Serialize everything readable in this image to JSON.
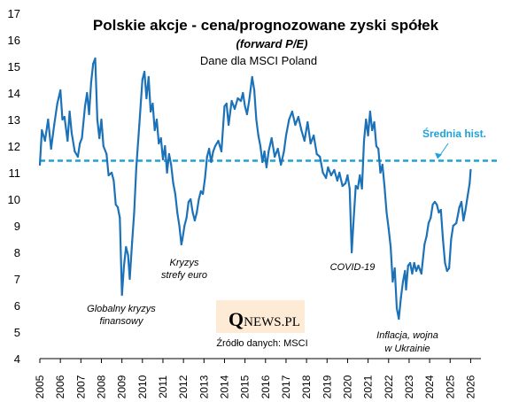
{
  "chart_data": {
    "type": "line",
    "title": "Polskie akcje - cena/prognozowane zyski spółek",
    "subtitle": "(forward P/E)",
    "note": "Dane dla MSCI Poland",
    "xlabel": "",
    "ylabel": "",
    "ylim": [
      4,
      17
    ],
    "xlim": [
      2005,
      2026.5
    ],
    "y_ticks": [
      "4",
      "5",
      "6",
      "7",
      "8",
      "9",
      "10",
      "11",
      "12",
      "13",
      "14",
      "15",
      "16",
      "17"
    ],
    "x_ticks": [
      "2005",
      "2006",
      "2007",
      "2008",
      "2009",
      "2010",
      "2011",
      "2012",
      "2013",
      "2014",
      "2015",
      "2016",
      "2017",
      "2018",
      "2019",
      "2020",
      "2021",
      "2022",
      "2023",
      "2024",
      "2025",
      "2026"
    ],
    "grid": false,
    "line_color": "#1c72b8",
    "series": [
      {
        "name": "",
        "points": [
          [
            2005.0,
            11.3
          ],
          [
            2005.1,
            12.6
          ],
          [
            2005.25,
            12.2
          ],
          [
            2005.4,
            13.0
          ],
          [
            2005.55,
            11.9
          ],
          [
            2005.7,
            12.8
          ],
          [
            2005.85,
            13.6
          ],
          [
            2006.0,
            14.1
          ],
          [
            2006.1,
            13.0
          ],
          [
            2006.2,
            13.1
          ],
          [
            2006.35,
            12.2
          ],
          [
            2006.45,
            13.3
          ],
          [
            2006.55,
            12.5
          ],
          [
            2006.7,
            11.8
          ],
          [
            2006.85,
            11.6
          ],
          [
            2006.95,
            12.1
          ],
          [
            2007.05,
            12.3
          ],
          [
            2007.2,
            13.5
          ],
          [
            2007.3,
            14.0
          ],
          [
            2007.4,
            13.2
          ],
          [
            2007.5,
            14.4
          ],
          [
            2007.6,
            15.1
          ],
          [
            2007.7,
            15.3
          ],
          [
            2007.8,
            13.0
          ],
          [
            2007.9,
            12.3
          ],
          [
            2008.0,
            13.0
          ],
          [
            2008.1,
            12.0
          ],
          [
            2008.25,
            11.7
          ],
          [
            2008.35,
            10.9
          ],
          [
            2008.5,
            11.0
          ],
          [
            2008.6,
            10.7
          ],
          [
            2008.7,
            9.8
          ],
          [
            2008.8,
            9.7
          ],
          [
            2008.9,
            9.3
          ],
          [
            2009.0,
            6.4
          ],
          [
            2009.1,
            7.5
          ],
          [
            2009.2,
            8.2
          ],
          [
            2009.3,
            7.9
          ],
          [
            2009.38,
            7.0
          ],
          [
            2009.5,
            8.4
          ],
          [
            2009.6,
            9.5
          ],
          [
            2009.7,
            11.2
          ],
          [
            2009.85,
            12.8
          ],
          [
            2010.0,
            14.5
          ],
          [
            2010.1,
            14.8
          ],
          [
            2010.2,
            13.8
          ],
          [
            2010.3,
            14.6
          ],
          [
            2010.4,
            13.3
          ],
          [
            2010.5,
            13.6
          ],
          [
            2010.6,
            12.6
          ],
          [
            2010.7,
            13.0
          ],
          [
            2010.8,
            12.1
          ],
          [
            2010.9,
            12.3
          ],
          [
            2011.0,
            11.5
          ],
          [
            2011.1,
            12.0
          ],
          [
            2011.2,
            11.0
          ],
          [
            2011.3,
            11.7
          ],
          [
            2011.4,
            11.3
          ],
          [
            2011.5,
            10.6
          ],
          [
            2011.6,
            10.2
          ],
          [
            2011.7,
            9.5
          ],
          [
            2011.8,
            9.0
          ],
          [
            2011.9,
            8.3
          ],
          [
            2011.95,
            8.5
          ],
          [
            2012.05,
            9.0
          ],
          [
            2012.15,
            9.3
          ],
          [
            2012.25,
            9.9
          ],
          [
            2012.35,
            10.0
          ],
          [
            2012.45,
            9.5
          ],
          [
            2012.55,
            9.2
          ],
          [
            2012.65,
            9.5
          ],
          [
            2012.75,
            10.0
          ],
          [
            2012.85,
            10.3
          ],
          [
            2012.95,
            10.2
          ],
          [
            2013.05,
            10.8
          ],
          [
            2013.15,
            11.6
          ],
          [
            2013.25,
            11.9
          ],
          [
            2013.35,
            11.4
          ],
          [
            2013.45,
            11.8
          ],
          [
            2013.55,
            12.0
          ],
          [
            2013.7,
            12.2
          ],
          [
            2013.85,
            11.8
          ],
          [
            2014.0,
            13.5
          ],
          [
            2014.1,
            13.6
          ],
          [
            2014.2,
            12.8
          ],
          [
            2014.35,
            13.7
          ],
          [
            2014.5,
            13.4
          ],
          [
            2014.65,
            13.8
          ],
          [
            2014.8,
            13.7
          ],
          [
            2014.9,
            14.0
          ],
          [
            2015.0,
            13.5
          ],
          [
            2015.1,
            13.2
          ],
          [
            2015.2,
            13.7
          ],
          [
            2015.35,
            14.6
          ],
          [
            2015.45,
            14.1
          ],
          [
            2015.55,
            13.0
          ],
          [
            2015.65,
            12.4
          ],
          [
            2015.75,
            12.0
          ],
          [
            2015.85,
            11.4
          ],
          [
            2015.95,
            11.8
          ],
          [
            2016.05,
            11.2
          ],
          [
            2016.15,
            11.8
          ],
          [
            2016.3,
            12.3
          ],
          [
            2016.45,
            11.6
          ],
          [
            2016.6,
            11.9
          ],
          [
            2016.75,
            11.3
          ],
          [
            2016.9,
            11.8
          ],
          [
            2017.0,
            12.4
          ],
          [
            2017.15,
            13.0
          ],
          [
            2017.3,
            13.3
          ],
          [
            2017.45,
            12.8
          ],
          [
            2017.6,
            13.1
          ],
          [
            2017.75,
            12.6
          ],
          [
            2017.9,
            12.2
          ],
          [
            2018.05,
            12.9
          ],
          [
            2018.2,
            12.1
          ],
          [
            2018.35,
            12.4
          ],
          [
            2018.5,
            11.7
          ],
          [
            2018.65,
            11.6
          ],
          [
            2018.8,
            11.0
          ],
          [
            2018.95,
            10.8
          ],
          [
            2019.05,
            11.2
          ],
          [
            2019.2,
            10.9
          ],
          [
            2019.35,
            11.1
          ],
          [
            2019.5,
            10.7
          ],
          [
            2019.6,
            11.0
          ],
          [
            2019.75,
            10.5
          ],
          [
            2019.9,
            10.6
          ],
          [
            2020.0,
            10.9
          ],
          [
            2020.1,
            10.4
          ],
          [
            2020.2,
            8.0
          ],
          [
            2020.3,
            9.3
          ],
          [
            2020.4,
            10.5
          ],
          [
            2020.5,
            10.4
          ],
          [
            2020.6,
            10.9
          ],
          [
            2020.7,
            10.4
          ],
          [
            2020.8,
            12.2
          ],
          [
            2020.9,
            13.0
          ],
          [
            2021.0,
            12.4
          ],
          [
            2021.1,
            13.3
          ],
          [
            2021.2,
            12.6
          ],
          [
            2021.3,
            12.9
          ],
          [
            2021.4,
            12.0
          ],
          [
            2021.5,
            11.9
          ],
          [
            2021.6,
            11.0
          ],
          [
            2021.7,
            11.3
          ],
          [
            2021.8,
            10.5
          ],
          [
            2021.9,
            9.5
          ],
          [
            2022.0,
            8.9
          ],
          [
            2022.1,
            8.2
          ],
          [
            2022.2,
            6.9
          ],
          [
            2022.3,
            7.4
          ],
          [
            2022.4,
            5.9
          ],
          [
            2022.5,
            5.5
          ],
          [
            2022.6,
            6.3
          ],
          [
            2022.7,
            6.9
          ],
          [
            2022.8,
            7.3
          ],
          [
            2022.85,
            6.6
          ],
          [
            2022.95,
            7.5
          ],
          [
            2023.05,
            7.6
          ],
          [
            2023.15,
            7.2
          ],
          [
            2023.25,
            7.6
          ],
          [
            2023.35,
            7.3
          ],
          [
            2023.45,
            7.5
          ],
          [
            2023.6,
            7.2
          ],
          [
            2023.75,
            8.3
          ],
          [
            2023.85,
            8.6
          ],
          [
            2023.95,
            9.1
          ],
          [
            2024.05,
            9.3
          ],
          [
            2024.15,
            9.8
          ],
          [
            2024.25,
            9.9
          ],
          [
            2024.35,
            9.8
          ],
          [
            2024.45,
            9.5
          ],
          [
            2024.55,
            9.6
          ],
          [
            2024.65,
            8.5
          ],
          [
            2024.75,
            7.6
          ],
          [
            2024.85,
            7.3
          ],
          [
            2024.95,
            7.4
          ],
          [
            2025.05,
            8.5
          ],
          [
            2025.15,
            9.0
          ],
          [
            2025.3,
            9.1
          ],
          [
            2025.45,
            9.7
          ],
          [
            2025.55,
            9.9
          ],
          [
            2025.65,
            9.2
          ],
          [
            2025.75,
            9.6
          ],
          [
            2025.85,
            10.1
          ],
          [
            2025.95,
            10.6
          ],
          [
            2026.0,
            11.1
          ]
        ]
      }
    ],
    "average": {
      "value": 11.45,
      "label": "Średnia hist.",
      "color": "#1fa2d8"
    },
    "annotations": [
      {
        "label_lines": [
          "Globalny kryzys",
          "finansowy"
        ]
      },
      {
        "label_lines": [
          "Kryzys",
          "strefy euro"
        ]
      },
      {
        "label_lines": [
          "COVID-19"
        ]
      },
      {
        "label_lines": [
          "Inflacja, wojna",
          "w Ukrainie"
        ]
      }
    ]
  },
  "logo": {
    "q": "Q",
    "text": "NEWS.PL",
    "background": "#fdebd6"
  },
  "source": "Źródło danych: MSCI"
}
